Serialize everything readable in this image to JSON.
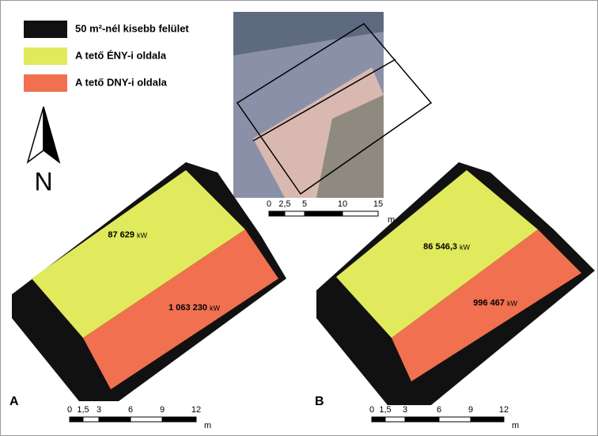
{
  "legend": [
    "50 m²-nél kisebb felület",
    "A tető ÉNY-i oldala",
    "A tető DNY-i oldala"
  ],
  "north": "N",
  "panels": [
    {
      "label": "A",
      "nw_value": "87 629",
      "nw_unit": "kW",
      "sw_value": "1 063 230",
      "sw_unit": "kW"
    },
    {
      "label": "B",
      "nw_value": "86 546,3",
      "nw_unit": "kW",
      "sw_value": "996 467",
      "sw_unit": "kW"
    }
  ],
  "scale_bars": {
    "photo": {
      "ticks": [
        "0",
        "2,5",
        "5",
        "10",
        "15"
      ],
      "unit": "m"
    },
    "panel_a": {
      "ticks": [
        "0",
        "1,5",
        "3",
        "6",
        "9",
        "12"
      ],
      "unit": "m"
    },
    "panel_b": {
      "ticks": [
        "0",
        "1,5",
        "3",
        "6",
        "9",
        "12"
      ],
      "unit": "m"
    }
  }
}
